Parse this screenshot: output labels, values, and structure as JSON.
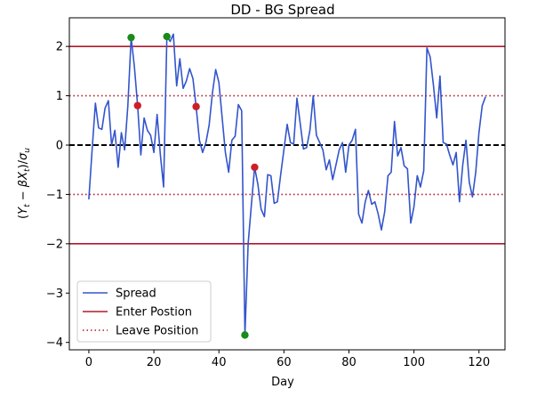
{
  "chart_data": {
    "type": "line",
    "title": "DD - BG Spread",
    "xlabel": "Day",
    "ylabel": "(Y_t − βX_t)/σ_u",
    "xlim": [
      -6,
      128
    ],
    "ylim": [
      -4.15,
      2.58
    ],
    "xticks": [
      0,
      20,
      40,
      60,
      80,
      100,
      120
    ],
    "yticks": [
      -4,
      -3,
      -2,
      -1,
      0,
      1,
      2
    ],
    "grid": false,
    "legend_position": "lower-left",
    "series": [
      {
        "name": "Spread",
        "color": "#3355cc",
        "x": [
          0,
          1,
          2,
          3,
          4,
          5,
          6,
          7,
          8,
          9,
          10,
          11,
          12,
          13,
          14,
          15,
          16,
          17,
          18,
          19,
          20,
          21,
          22,
          23,
          24,
          25,
          26,
          27,
          28,
          29,
          30,
          31,
          32,
          33,
          34,
          35,
          36,
          37,
          38,
          39,
          40,
          41,
          42,
          43,
          44,
          45,
          46,
          47,
          48,
          49,
          50,
          51,
          52,
          53,
          54,
          55,
          56,
          57,
          58,
          59,
          60,
          61,
          62,
          63,
          64,
          65,
          66,
          67,
          68,
          69,
          70,
          71,
          72,
          73,
          74,
          75,
          76,
          77,
          78,
          79,
          80,
          81,
          82,
          83,
          84,
          85,
          86,
          87,
          88,
          89,
          90,
          91,
          92,
          93,
          94,
          95,
          96,
          97,
          98,
          99,
          100,
          101,
          102,
          103,
          104,
          105,
          106,
          107,
          108,
          109,
          110,
          111,
          112,
          113,
          114,
          115,
          116,
          117,
          118,
          119,
          120,
          121,
          122
        ],
        "values": [
          -1.1,
          -0.1,
          0.85,
          0.35,
          0.32,
          0.75,
          0.9,
          0.0,
          0.3,
          -0.45,
          0.25,
          -0.1,
          0.8,
          2.18,
          1.6,
          0.8,
          -0.2,
          0.55,
          0.3,
          0.2,
          -0.15,
          0.62,
          -0.2,
          -0.85,
          2.2,
          2.1,
          2.25,
          1.2,
          1.75,
          1.15,
          1.3,
          1.55,
          1.35,
          0.78,
          0.1,
          -0.15,
          0.05,
          0.4,
          1.05,
          1.53,
          1.27,
          0.55,
          -0.15,
          -0.55,
          0.1,
          0.18,
          0.82,
          0.7,
          -3.85,
          -2.0,
          -1.2,
          -0.45,
          -0.8,
          -1.3,
          -1.45,
          -0.6,
          -0.62,
          -1.18,
          -1.15,
          -0.6,
          -0.1,
          0.42,
          0.05,
          0.02,
          0.95,
          0.45,
          -0.08,
          -0.05,
          0.3,
          1.0,
          0.2,
          0.05,
          -0.1,
          -0.5,
          -0.3,
          -0.7,
          -0.4,
          -0.1,
          0.05,
          -0.55,
          0.0,
          0.1,
          0.32,
          -1.4,
          -1.58,
          -1.15,
          -0.92,
          -1.2,
          -1.15,
          -1.4,
          -1.72,
          -1.35,
          -0.62,
          -0.55,
          0.48,
          -0.22,
          -0.05,
          -0.42,
          -0.48,
          -1.58,
          -1.25,
          -0.62,
          -0.85,
          -0.52,
          1.97,
          1.78,
          1.2,
          0.55,
          1.4,
          0.05,
          0.02,
          -0.2,
          -0.4,
          -0.15,
          -1.15,
          -0.4,
          0.1,
          -0.75,
          -1.05,
          -0.55,
          0.25,
          0.8,
          0.98
        ]
      }
    ],
    "hlines": [
      {
        "name": "Enter Postion",
        "values": [
          2,
          -2
        ],
        "color": "#b2182b",
        "style": "solid"
      },
      {
        "name": "Leave Position",
        "values": [
          1,
          -1
        ],
        "color": "#b2182b",
        "style": "dotted"
      },
      {
        "name": "",
        "values": [
          0
        ],
        "color": "#000000",
        "style": "dashed"
      }
    ],
    "markers": [
      {
        "kind": "enter",
        "color": "#1a8a1a",
        "points": [
          [
            13,
            2.18
          ],
          [
            24,
            2.2
          ],
          [
            48,
            -3.85
          ]
        ]
      },
      {
        "kind": "exit",
        "color": "#cc1f2a",
        "points": [
          [
            15,
            0.8
          ],
          [
            33,
            0.78
          ],
          [
            51,
            -0.45
          ]
        ]
      }
    ],
    "legend": [
      {
        "label": "Spread",
        "style": "line-blue"
      },
      {
        "label": "Enter Postion",
        "style": "line-red-solid"
      },
      {
        "label": "Leave Position",
        "style": "line-red-dotted"
      }
    ]
  }
}
